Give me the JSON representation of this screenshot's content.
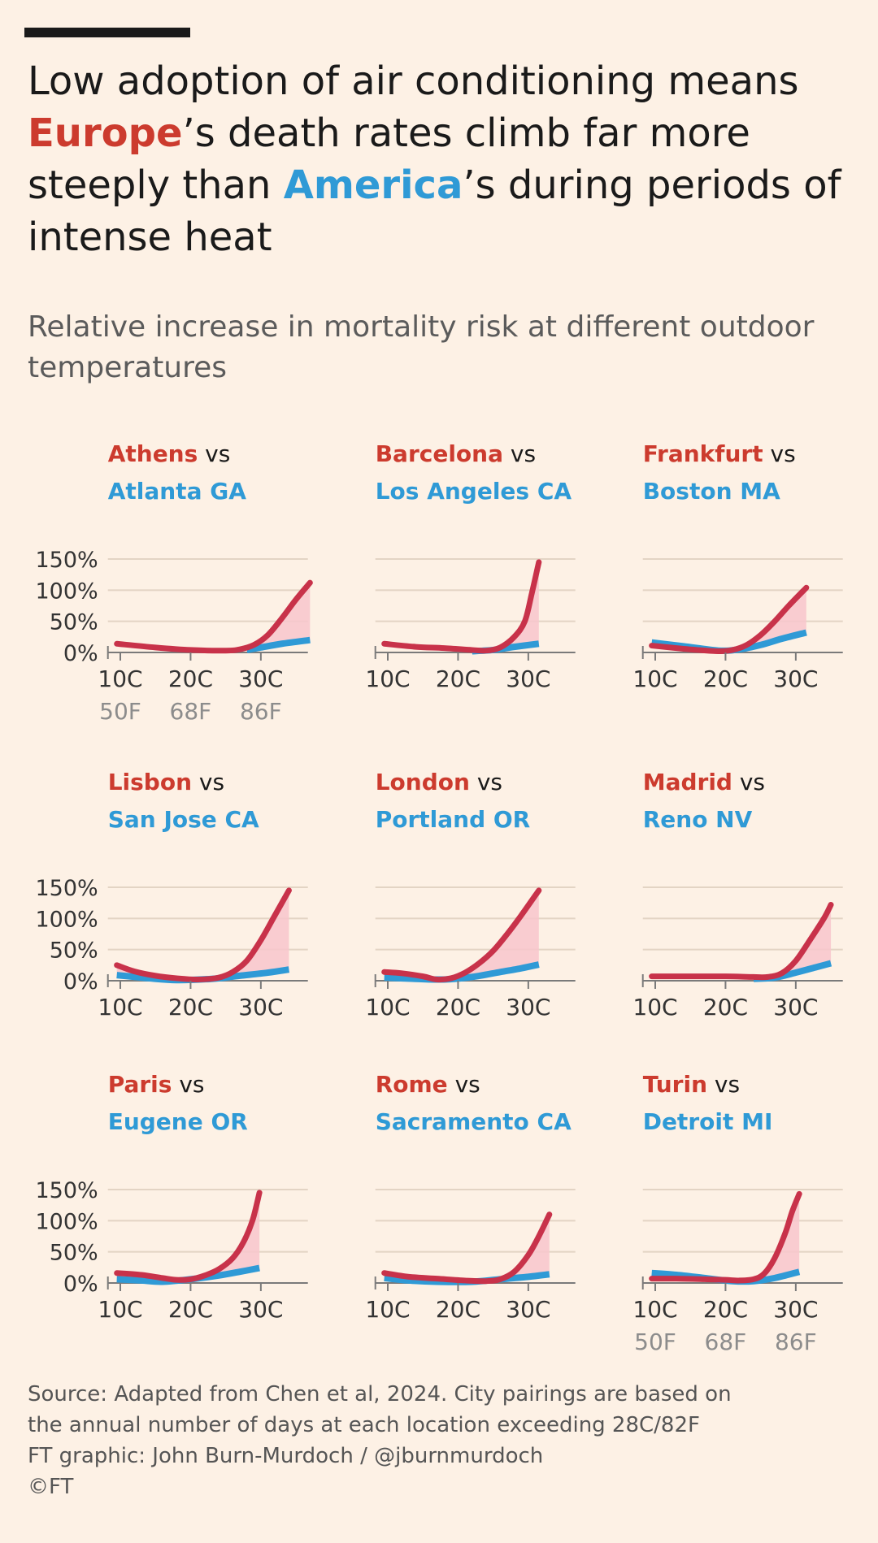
{
  "header": {
    "title_pre": "Low adoption of air conditioning means ",
    "title_eu": "Europe",
    "title_mid": "’s death rates climb far more steeply than ",
    "title_us": "America",
    "title_post": "’s during periods of intense heat",
    "subtitle": "Relative increase in mortality risk at different outdoor temperatures"
  },
  "colors": {
    "europe": "#cc3b2e",
    "america": "#2f9ad6",
    "europe_line": "#c8324a",
    "fill": "#f8c6cd",
    "grid": "#e3d4c4",
    "axis": "#7a7a7a",
    "tick_label": "#333333",
    "fahrenheit": "#8c8c8c"
  },
  "chart_data": {
    "type": "line",
    "y_ticks": [
      0,
      50,
      100,
      150
    ],
    "y_tick_labels": [
      "0%",
      "50%",
      "100%",
      "150%"
    ],
    "ylim": [
      0,
      160
    ],
    "xlim": [
      8,
      36
    ],
    "x_ticks": [
      10,
      20,
      30
    ],
    "x_tick_labels": [
      "10C",
      "20C",
      "30C"
    ],
    "f_tick_labels": [
      "50F",
      "68F",
      "86F"
    ],
    "vs_label": " vs",
    "panels": [
      {
        "europe": "Athens",
        "america": "Atlanta GA",
        "show_f": true,
        "eu": [
          [
            9.5,
            14
          ],
          [
            15,
            8
          ],
          [
            20,
            4
          ],
          [
            25,
            3
          ],
          [
            27,
            5
          ],
          [
            29,
            12
          ],
          [
            31,
            28
          ],
          [
            33,
            55
          ],
          [
            35,
            85
          ],
          [
            37,
            112
          ]
        ],
        "us": [
          [
            28,
            4
          ],
          [
            30,
            8
          ],
          [
            33,
            14
          ],
          [
            37,
            20
          ]
        ]
      },
      {
        "europe": "Barcelona",
        "america": "Los Angeles CA",
        "show_f": false,
        "eu": [
          [
            9.5,
            14
          ],
          [
            14,
            9
          ],
          [
            18,
            7
          ],
          [
            22,
            4
          ],
          [
            24,
            3
          ],
          [
            26,
            8
          ],
          [
            28,
            25
          ],
          [
            29.5,
            50
          ],
          [
            30.5,
            95
          ],
          [
            31.5,
            145
          ]
        ],
        "us": [
          [
            22,
            2
          ],
          [
            25,
            4
          ],
          [
            28,
            9
          ],
          [
            31.5,
            14
          ]
        ]
      },
      {
        "europe": "Frankfurt",
        "america": "Boston MA",
        "show_f": false,
        "eu": [
          [
            9.5,
            11
          ],
          [
            13,
            7
          ],
          [
            16,
            4
          ],
          [
            19,
            2
          ],
          [
            21,
            4
          ],
          [
            23,
            12
          ],
          [
            25,
            28
          ],
          [
            27,
            50
          ],
          [
            29,
            75
          ],
          [
            31.5,
            104
          ]
        ],
        "us": [
          [
            9.5,
            16
          ],
          [
            14,
            10
          ],
          [
            19,
            3
          ],
          [
            22,
            5
          ],
          [
            25,
            12
          ],
          [
            28,
            22
          ],
          [
            31.5,
            32
          ]
        ]
      },
      {
        "europe": "Lisbon",
        "america": "San Jose CA",
        "show_f": false,
        "eu": [
          [
            9.5,
            25
          ],
          [
            12,
            15
          ],
          [
            15,
            8
          ],
          [
            18,
            4
          ],
          [
            21,
            2
          ],
          [
            24,
            5
          ],
          [
            26,
            14
          ],
          [
            28,
            32
          ],
          [
            30,
            65
          ],
          [
            32,
            105
          ],
          [
            34,
            145
          ]
        ],
        "us": [
          [
            9.5,
            9
          ],
          [
            14,
            4
          ],
          [
            18,
            1
          ],
          [
            23,
            3
          ],
          [
            27,
            8
          ],
          [
            31,
            13
          ],
          [
            34,
            18
          ]
        ]
      },
      {
        "europe": "London",
        "america": "Portland OR",
        "show_f": false,
        "eu": [
          [
            9.5,
            14
          ],
          [
            12,
            12
          ],
          [
            15,
            7
          ],
          [
            17,
            2
          ],
          [
            19,
            4
          ],
          [
            21,
            13
          ],
          [
            23,
            28
          ],
          [
            25,
            48
          ],
          [
            27,
            75
          ],
          [
            29,
            105
          ],
          [
            31.5,
            145
          ]
        ],
        "us": [
          [
            9.5,
            5
          ],
          [
            14,
            3
          ],
          [
            18,
            2
          ],
          [
            22,
            6
          ],
          [
            26,
            14
          ],
          [
            29,
            20
          ],
          [
            31.5,
            26
          ]
        ]
      },
      {
        "europe": "Madrid",
        "america": "Reno NV",
        "show_f": false,
        "eu": [
          [
            9.5,
            7
          ],
          [
            15,
            7
          ],
          [
            20,
            7
          ],
          [
            24,
            6
          ],
          [
            26,
            6
          ],
          [
            28,
            12
          ],
          [
            30,
            32
          ],
          [
            32,
            65
          ],
          [
            34,
            100
          ],
          [
            35,
            122
          ]
        ],
        "us": [
          [
            24,
            3
          ],
          [
            27,
            5
          ],
          [
            30,
            13
          ],
          [
            33,
            22
          ],
          [
            35,
            28
          ]
        ]
      },
      {
        "europe": "Paris",
        "america": "Eugene OR",
        "show_f": false,
        "eu": [
          [
            9.5,
            16
          ],
          [
            13,
            13
          ],
          [
            16,
            8
          ],
          [
            18,
            5
          ],
          [
            20,
            6
          ],
          [
            22,
            12
          ],
          [
            24,
            22
          ],
          [
            26,
            40
          ],
          [
            27.5,
            65
          ],
          [
            28.8,
            100
          ],
          [
            29.8,
            145
          ]
        ],
        "us": [
          [
            9.5,
            6
          ],
          [
            13,
            4
          ],
          [
            16,
            2
          ],
          [
            20,
            6
          ],
          [
            24,
            12
          ],
          [
            27,
            18
          ],
          [
            29.8,
            24
          ]
        ]
      },
      {
        "europe": "Rome",
        "america": "Sacramento CA",
        "show_f": false,
        "eu": [
          [
            9.5,
            16
          ],
          [
            13,
            10
          ],
          [
            17,
            7
          ],
          [
            21,
            4
          ],
          [
            24,
            3
          ],
          [
            26,
            6
          ],
          [
            28,
            18
          ],
          [
            30,
            45
          ],
          [
            31.5,
            75
          ],
          [
            33,
            110
          ]
        ],
        "us": [
          [
            9.5,
            8
          ],
          [
            13,
            4
          ],
          [
            17,
            2
          ],
          [
            22,
            2
          ],
          [
            26,
            6
          ],
          [
            30,
            10
          ],
          [
            33,
            14
          ]
        ]
      },
      {
        "europe": "Turin",
        "america": "Detroit MI",
        "show_f": true,
        "eu": [
          [
            9.5,
            7
          ],
          [
            13,
            7
          ],
          [
            17,
            6
          ],
          [
            20,
            5
          ],
          [
            22,
            4
          ],
          [
            24,
            6
          ],
          [
            25.5,
            15
          ],
          [
            27,
            40
          ],
          [
            28.5,
            80
          ],
          [
            29.5,
            115
          ],
          [
            30.5,
            143
          ]
        ],
        "us": [
          [
            9.5,
            16
          ],
          [
            13,
            13
          ],
          [
            17,
            8
          ],
          [
            21,
            3
          ],
          [
            24,
            3
          ],
          [
            27,
            8
          ],
          [
            30.5,
            18
          ]
        ]
      }
    ]
  },
  "footer": {
    "source_line1": "Source: Adapted from Chen et al, 2024. City pairings are based on",
    "source_line2": "the annual number of days at each location exceeding 28C/82F",
    "credit": "FT graphic: John Burn-Murdoch / @jburnmurdoch",
    "copyright": "©FT"
  }
}
